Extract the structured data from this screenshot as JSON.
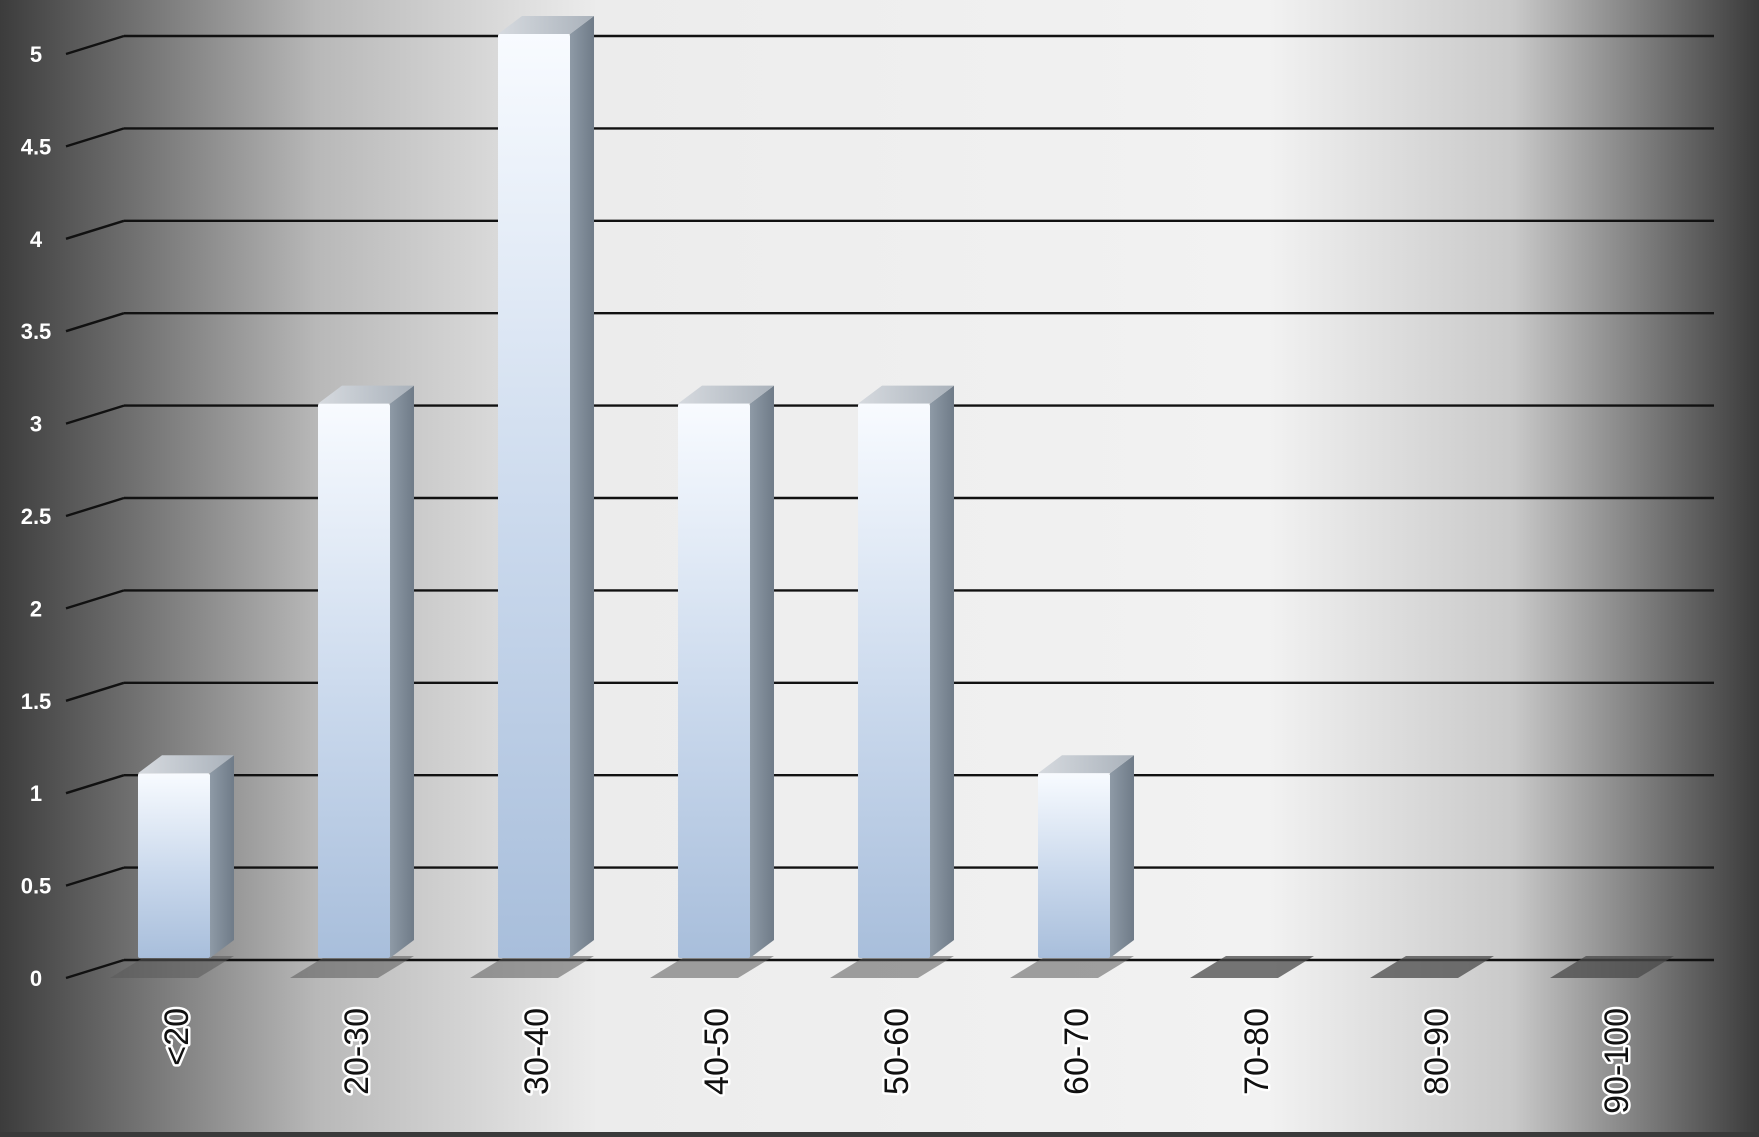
{
  "chart_data": {
    "type": "bar",
    "title": "",
    "xlabel": "",
    "ylabel": "",
    "categories": [
      "<20",
      "20-30",
      "30-40",
      "40-50",
      "50-60",
      "60-70",
      "70-80",
      "80-90",
      "90-100"
    ],
    "values": [
      1,
      3,
      5,
      3,
      3,
      1,
      0,
      0,
      0
    ],
    "ylim": [
      0,
      5
    ],
    "yticks": [
      "0",
      "0.5",
      "1",
      "1.5",
      "2",
      "2.5",
      "3",
      "3.5",
      "4",
      "4.5",
      "5"
    ],
    "grid": true,
    "legend": "none",
    "style": "3d-column"
  },
  "colors": {
    "bar_top": "#f7faff",
    "bar_bottom": "#a9c0dd",
    "bar_side": "#7f8c99",
    "gridline": "#111111",
    "background_center": "#f2f2f2",
    "background_edge": "#3a3a3a"
  }
}
